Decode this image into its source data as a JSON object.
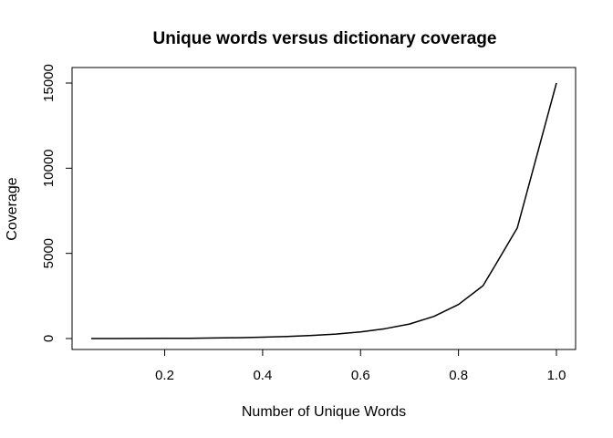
{
  "chart_data": {
    "type": "line",
    "title": "Unique words versus dictionary coverage",
    "xlabel": "Number of Unique Words",
    "ylabel": "Coverage",
    "xlim": [
      0.05,
      1.0
    ],
    "ylim": [
      0,
      15000
    ],
    "x_ticks": [
      0.2,
      0.4,
      0.6,
      0.8,
      1.0
    ],
    "x_tick_labels": [
      "0.2",
      "0.4",
      "0.6",
      "0.8",
      "1.0"
    ],
    "y_ticks": [
      0,
      5000,
      10000,
      15000
    ],
    "y_tick_labels": [
      "0",
      "5000",
      "10000",
      "15000"
    ],
    "grid": false,
    "legend": "none",
    "series": [
      {
        "color": "#000000",
        "x": [
          0.05,
          0.1,
          0.15,
          0.2,
          0.25,
          0.3,
          0.35,
          0.4,
          0.45,
          0.5,
          0.55,
          0.6,
          0.65,
          0.7,
          0.75,
          0.8,
          0.85,
          0.875,
          0.92,
          1.0
        ],
        "y": [
          0,
          2,
          5,
          10,
          18,
          30,
          50,
          80,
          120,
          180,
          260,
          390,
          580,
          850,
          1300,
          2000,
          3100,
          4300,
          6500,
          15000
        ]
      }
    ]
  }
}
